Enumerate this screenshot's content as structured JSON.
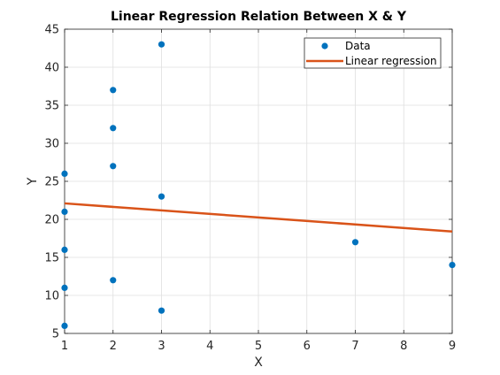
{
  "chart_data": {
    "type": "scatter",
    "title": "Linear Regression Relation Between X & Y",
    "xlabel": "X",
    "ylabel": "Y",
    "xlim": [
      1,
      9
    ],
    "ylim": [
      5,
      45
    ],
    "xticks": [
      "1",
      "2",
      "3",
      "4",
      "5",
      "6",
      "7",
      "8",
      "9"
    ],
    "yticks": [
      "5",
      "10",
      "15",
      "20",
      "25",
      "30",
      "35",
      "40",
      "45"
    ],
    "grid": true,
    "legend_position": "top-right",
    "series": [
      {
        "name": "Data",
        "type": "scatter",
        "color": "#0072BD",
        "x": [
          1,
          1,
          1,
          1,
          1,
          2,
          2,
          2,
          2,
          3,
          3,
          3,
          7,
          9
        ],
        "y": [
          6,
          11,
          16,
          21,
          26,
          12,
          27,
          32,
          37,
          8,
          23,
          43,
          17,
          14
        ]
      },
      {
        "name": "Linear regression",
        "type": "line",
        "color": "#D95319",
        "x": [
          1,
          9
        ],
        "y": [
          22.1,
          18.4
        ]
      }
    ]
  }
}
